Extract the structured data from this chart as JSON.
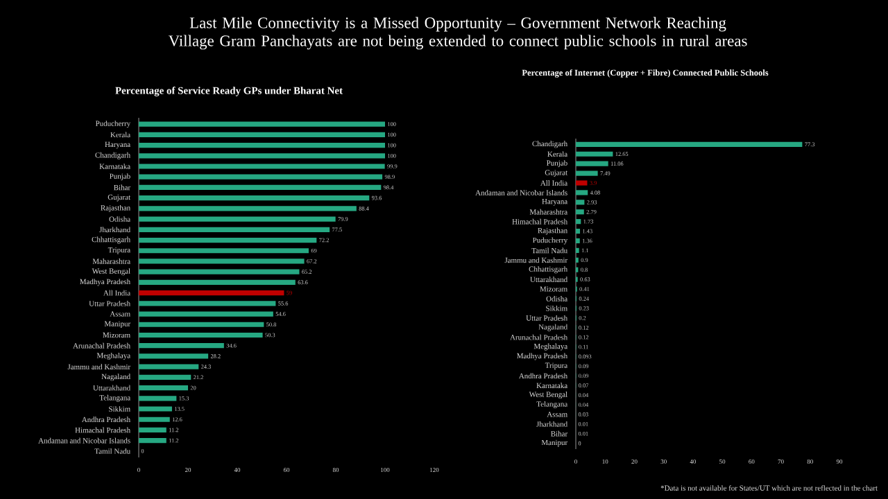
{
  "chart_data": [
    {
      "type": "bar",
      "orientation": "horizontal",
      "title": "Last Mile Connectivity is a Missed Opportunity – Government Network Reaching Village Gram Panchayats are not being extended to connect public schools in rural areas",
      "subtitle": "Percentage of  Service Ready GPs under Bharat Net",
      "categories": [
        "Puducherry",
        "Kerala",
        "Haryana",
        "Chandigarh",
        "Karnataka",
        "Punjab",
        "Bihar",
        "Gujarat",
        "Rajasthan",
        "Odisha",
        "Jharkhand",
        "Chhattisgarh",
        "Tripura",
        "Maharashtra",
        "West Bengal",
        "Madhya Pradesh",
        "All India",
        "Uttar Pradesh",
        "Assam",
        "Manipur",
        "Mizoram",
        "Arunachal Pradesh",
        "Meghalaya",
        "Jammu and Kashmir",
        "Nagaland",
        "Uttarakhand",
        "Telangana",
        "Sikkim",
        "Andhra Pradesh",
        "Himachal Pradesh",
        "Andaman and Nicobar Islands",
        "Tamil Nadu"
      ],
      "values": [
        100,
        100,
        100,
        100,
        99.9,
        98.9,
        98.4,
        93.6,
        88.4,
        79.9,
        77.5,
        72.2,
        69,
        67.2,
        65.2,
        63.6,
        59,
        55.6,
        54.6,
        50.8,
        50.3,
        34.6,
        28.2,
        24.3,
        21.2,
        20,
        15.3,
        13.5,
        12.6,
        11.2,
        11.2,
        0
      ],
      "value_labels": [
        "100",
        "100",
        "100",
        "100",
        "99.9",
        "98.9",
        "98.4",
        "93.6",
        "88.4",
        "79.9",
        "77.5",
        "72.2",
        "69",
        "67.2",
        "65.2",
        "63.6",
        "59",
        "55.6",
        "54.6",
        "50.8",
        "50.3",
        "34.6",
        "28.2",
        "24.3",
        "21.2",
        "20",
        "15.3",
        "13.5",
        "12.6",
        "11.2",
        "11.2",
        "0"
      ],
      "colors": [
        "#26a882",
        "#26a882",
        "#26a882",
        "#26a882",
        "#26a882",
        "#26a882",
        "#26a882",
        "#26a882",
        "#26a882",
        "#26a882",
        "#26a882",
        "#26a882",
        "#26a882",
        "#26a882",
        "#26a882",
        "#26a882",
        "#c00000",
        "#26a882",
        "#26a882",
        "#26a882",
        "#26a882",
        "#26a882",
        "#26a882",
        "#26a882",
        "#26a882",
        "#26a882",
        "#26a882",
        "#26a882",
        "#26a882",
        "#26a882",
        "#26a882",
        "#26a882"
      ],
      "xlim": [
        0,
        120
      ],
      "xticks": [
        0,
        20,
        40,
        60,
        80,
        100,
        120
      ],
      "grid": false
    },
    {
      "type": "bar",
      "orientation": "horizontal",
      "title": "Percentage of Internet (Copper + Fibre) Connected Public Schools",
      "categories": [
        "Chandigarh",
        "Kerala",
        "Punjab",
        "Gujarat",
        "All India",
        "Andaman and Nicobar Islands",
        "Haryana",
        "Maharashtra",
        "Himachal Pradesh",
        "Rajasthan",
        "Puducherry",
        "Tamil Nadu",
        "Jammu and Kashmir",
        "Chhattisgarh",
        "Uttarakhand",
        "Mizoram",
        "Odisha",
        "Sikkim",
        "Uttar Pradesh",
        "Nagaland",
        "Arunachal Pradesh",
        "Meghalaya",
        "Madhya Pradesh",
        "Tripura",
        "Andhra Pradesh",
        "Karnataka",
        "West Bengal",
        "Telangana",
        "Assam",
        "Jharkhand",
        "Bihar",
        "Manipur"
      ],
      "values": [
        77.3,
        12.65,
        11.06,
        7.49,
        3.9,
        4.08,
        2.93,
        2.79,
        1.73,
        1.43,
        1.36,
        1.1,
        0.9,
        0.8,
        0.63,
        0.41,
        0.24,
        0.23,
        0.2,
        0.12,
        0.12,
        0.11,
        0.093,
        0.09,
        0.09,
        0.07,
        0.04,
        0.04,
        0.03,
        0.01,
        0.01,
        0
      ],
      "value_labels": [
        "77.3",
        "12.65",
        "11.06",
        "7.49",
        "3.9",
        "4.08",
        "2.93",
        "2.79",
        "1.73",
        "1.43",
        "1.36",
        "1.1",
        "0.9",
        "0.8",
        "0.63",
        "0.41",
        "0.24",
        "0.23",
        "0.2",
        "0.12",
        "0.12",
        "0.11",
        "0.093",
        "0.09",
        "0.09",
        "0.07",
        "0.04",
        "0.04",
        "0.03",
        "0.01",
        "0.01",
        "0"
      ],
      "colors": [
        "#26a882",
        "#26a882",
        "#26a882",
        "#26a882",
        "#c00000",
        "#26a882",
        "#26a882",
        "#26a882",
        "#26a882",
        "#26a882",
        "#26a882",
        "#26a882",
        "#26a882",
        "#26a882",
        "#26a882",
        "#26a882",
        "#26a882",
        "#26a882",
        "#26a882",
        "#26a882",
        "#26a882",
        "#26a882",
        "#26a882",
        "#26a882",
        "#26a882",
        "#26a882",
        "#26a882",
        "#26a882",
        "#26a882",
        "#26a882",
        "#26a882",
        "#26a882"
      ],
      "xlim": [
        0,
        90
      ],
      "xticks": [
        0,
        10,
        20,
        30,
        40,
        50,
        60,
        70,
        80,
        90
      ],
      "grid": false,
      "annotations": [
        "*Data is not available for  States/UT which are not reflected in the chart"
      ]
    }
  ]
}
